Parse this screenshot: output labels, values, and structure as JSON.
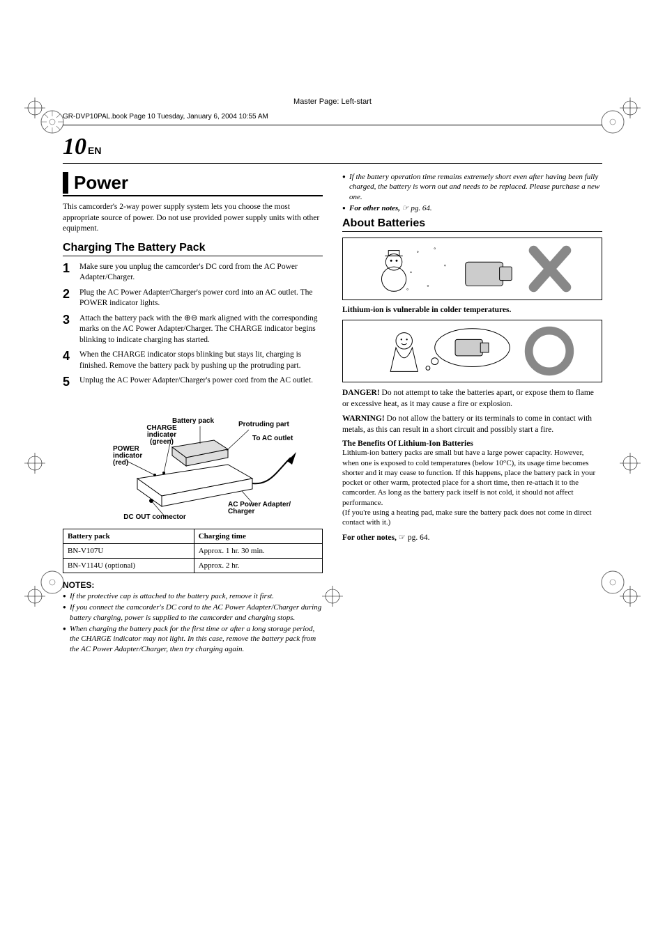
{
  "masterPage": "Master Page: Left-start",
  "headerLine": "GR-DVP10PAL.book  Page 10  Tuesday, January 6, 2004  10:55 AM",
  "pageNumber": "10",
  "pageLang": "EN",
  "sectionTitle": "Power",
  "introText": "This camcorder's 2-way power supply system lets you choose the most appropriate source of power. Do not use provided power supply units with other equipment.",
  "chargingHeading": "Charging The Battery Pack",
  "steps": [
    "Make sure you unplug the camcorder's DC cord from the AC Power Adapter/Charger.",
    "Plug the AC Power Adapter/Charger's power cord into an AC outlet. The POWER indicator lights.",
    "Attach the battery pack with the ⊕⊖ mark aligned with the corresponding marks on the AC Power Adapter/Charger. The CHARGE indicator begins blinking to indicate charging has started.",
    "When the CHARGE indicator stops blinking but stays lit, charging is finished. Remove the battery pack by pushing up the protruding part.",
    "Unplug the AC Power Adapter/Charger's power cord from the AC outlet."
  ],
  "diagramLabels": {
    "battery": "Battery pack",
    "charge": "CHARGE indicator (green)",
    "power": "POWER indicator (red)",
    "protruding": "Protruding part",
    "toAC": "To AC outlet",
    "adapter": "AC Power Adapter/ Charger",
    "dcout": "DC OUT connector"
  },
  "table": {
    "headers": [
      "Battery pack",
      "Charging time"
    ],
    "rows": [
      [
        "BN-V107U",
        "Approx. 1 hr. 30 min."
      ],
      [
        "BN-V114U (optional)",
        "Approx. 2 hr."
      ]
    ]
  },
  "notesTitle": "NOTES:",
  "notes": [
    {
      "text": "If the protective cap is attached to the battery pack, remove it first."
    },
    {
      "text": "If you connect the camcorder's DC cord to the AC Power Adapter/Charger during battery charging, power is supplied to the camcorder and charging stops."
    },
    {
      "text": "When charging the battery pack for the first time or after a long storage period, the CHARGE indicator may not light. In this case, remove the battery pack from the AC Power Adapter/Charger, then try charging again."
    }
  ],
  "rightNotes": [
    {
      "text": "If the battery operation time remains extremely short even after having been fully charged, the battery is worn out and needs to be replaced. Please purchase a new one."
    },
    {
      "boldLead": "For other notes,",
      "text": " ☞ pg. 64."
    }
  ],
  "aboutBatteries": "About Batteries",
  "coldLine": "Lithium-ion is vulnerable in colder temperatures.",
  "danger": {
    "lead": "DANGER!",
    "text": " Do not attempt to take the batteries apart, or expose them to flame or excessive heat, as it may cause a fire or explosion."
  },
  "warning": {
    "lead": "WARNING!",
    "text": " Do not allow the battery or its terminals to come in contact with metals, as this can result in a short circuit and possibly start a fire."
  },
  "benefitsTitle": "The Benefits Of Lithium-Ion Batteries",
  "benefitsText": "Lithium-ion battery packs are small but have a large power capacity. However, when one is exposed to cold temperatures (below 10°C), its usage time becomes shorter and it may cease to function. If this happens, place the battery pack in your pocket or other warm, protected place for a short time, then re-attach it to the camcorder. As long as the battery pack itself is not cold, it should not affect performance.",
  "benefitsNote": "(If you're using a heating pad, make sure the battery pack does not come in direct contact with it.)",
  "finalRef": {
    "bold": "For other notes, ",
    "rest": "☞ pg. 64."
  }
}
